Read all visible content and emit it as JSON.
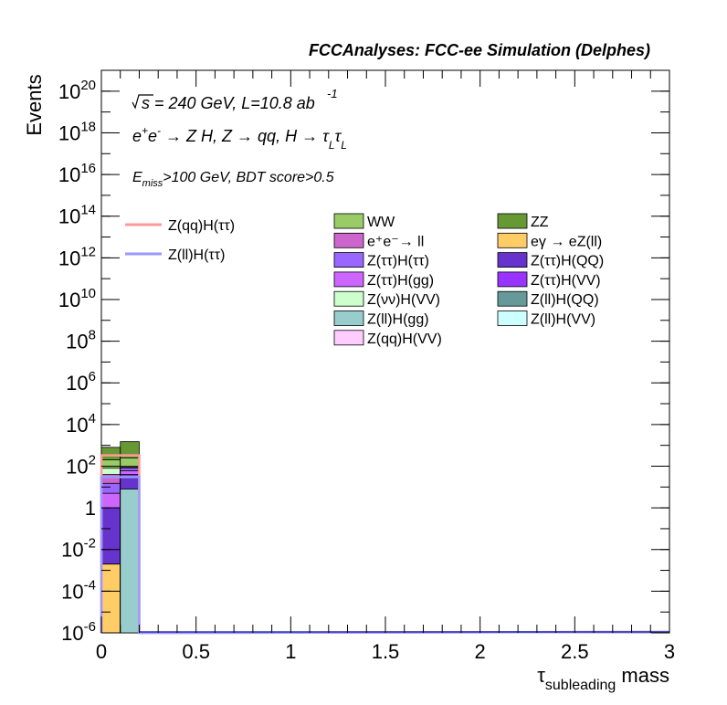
{
  "header": {
    "title": "FCCAnalyses: FCC-ee Simulation (Delphes)"
  },
  "annotations": {
    "energy": "√s = 240 GeV, L=10.8 ab",
    "energy_sup": "-1",
    "process": "e⁺e⁻ → Z H, Z → qq, H → τ_L τ_L",
    "selection": "E_miss>100 GeV, BDT score>0.5"
  },
  "chart_data": {
    "type": "histogram",
    "title": "FCCAnalyses: FCC-ee Simulation (Delphes)",
    "xlabel": "τ_subleading mass",
    "ylabel": "Events",
    "xlim": [
      0,
      3
    ],
    "ylim": [
      1e-06,
      1e+21
    ],
    "yscale": "log",
    "x_ticks": [
      "0",
      "0.5",
      "1",
      "1.5",
      "2",
      "2.5",
      "3"
    ],
    "y_ticks": [
      "10^-6",
      "10^-4",
      "10^-2",
      "1",
      "10^2",
      "10^4",
      "10^6",
      "10^8",
      "10^10",
      "10^12",
      "10^14",
      "10^16",
      "10^18",
      "10^20"
    ],
    "bin_edges": [
      0,
      0.1,
      0.2,
      0.3
    ],
    "stack_cumulative": {
      "eγ → eZ(ll)": [
        0.002,
        0.0
      ],
      "Z(ll)H(gg)": [
        0.002,
        8.0
      ],
      "Z(ττ)H(QQ)": [
        1.0,
        40.0
      ],
      "Z(ττ)H(gg)": [
        5.0,
        60.0
      ],
      "Z(ττ)H(ττ)": [
        15.0,
        80.0
      ],
      "e⁺e⁻→ ll": [
        40.0,
        90.0
      ],
      "Z(νν)H(VV)": [
        80.0,
        100.0
      ],
      "WW": [
        200.0,
        250.0
      ],
      "ZZ": [
        800.0,
        1500.0
      ]
    },
    "signal_lines": [
      {
        "name": "Z(qq)H(ττ)",
        "color": "#ff9999",
        "values": [
          330,
          330,
          1e-06
        ]
      },
      {
        "name": "Z(ll)H(ττ)",
        "color": "#9999ff",
        "values": [
          30,
          30,
          1e-06
        ]
      }
    ],
    "legend": {
      "lines": [
        {
          "name": "Z(qq)H(ττ)",
          "color": "#ff9999"
        },
        {
          "name": "Z(ll)H(ττ)",
          "color": "#9999ff"
        }
      ],
      "boxes": [
        {
          "name": "WW",
          "color": "#99cc66"
        },
        {
          "name": "ZZ",
          "color": "#669933"
        },
        {
          "name": "e⁺e⁻→ ll",
          "color": "#cc66cc"
        },
        {
          "name": "eγ → eZ(ll)",
          "color": "#ffcc66"
        },
        {
          "name": "Z(ττ)H(ττ)",
          "color": "#9966ff"
        },
        {
          "name": "Z(ττ)H(QQ)",
          "color": "#6633cc"
        },
        {
          "name": "Z(ττ)H(gg)",
          "color": "#cc66ff"
        },
        {
          "name": "Z(ττ)H(VV)",
          "color": "#9933ff"
        },
        {
          "name": "Z(νν)H(VV)",
          "color": "#ccffcc"
        },
        {
          "name": "Z(ll)H(QQ)",
          "color": "#669999"
        },
        {
          "name": "Z(ll)H(gg)",
          "color": "#99cccc"
        },
        {
          "name": "Z(ll)H(VV)",
          "color": "#ccffff"
        },
        {
          "name": "Z(qq)H(VV)",
          "color": "#ffccff"
        }
      ],
      "placement": "top-right"
    }
  }
}
